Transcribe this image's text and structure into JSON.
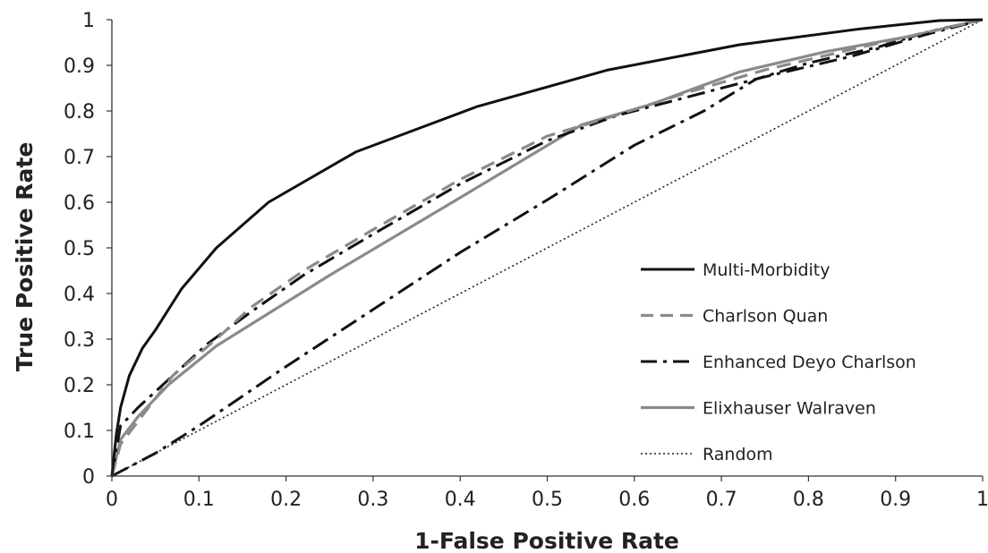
{
  "chart_data": {
    "type": "line",
    "title": "",
    "xlabel": "1-False Positive Rate",
    "ylabel": "True Positive Rate",
    "xlim": [
      0,
      1
    ],
    "ylim": [
      0,
      1
    ],
    "x_ticks": [
      "0",
      "0.1",
      "0.2",
      "0.3",
      "0.4",
      "0.5",
      "0.6",
      "0.7",
      "0.8",
      "0.9",
      "1"
    ],
    "y_ticks": [
      "0",
      "0.1",
      "0.2",
      "0.3",
      "0.4",
      "0.5",
      "0.6",
      "0.7",
      "0.8",
      "0.9",
      "1"
    ],
    "grid": false,
    "legend_position": "bottom-right",
    "series": [
      {
        "name": "Multi-Morbidity",
        "color": "#111111",
        "style": "solid",
        "points": [
          [
            0,
            0
          ],
          [
            0.005,
            0.09
          ],
          [
            0.01,
            0.15
          ],
          [
            0.02,
            0.22
          ],
          [
            0.035,
            0.28
          ],
          [
            0.05,
            0.32
          ],
          [
            0.08,
            0.41
          ],
          [
            0.12,
            0.5
          ],
          [
            0.18,
            0.6
          ],
          [
            0.28,
            0.71
          ],
          [
            0.42,
            0.81
          ],
          [
            0.57,
            0.89
          ],
          [
            0.72,
            0.945
          ],
          [
            0.86,
            0.98
          ],
          [
            0.95,
            0.998
          ],
          [
            1,
            1
          ]
        ]
      },
      {
        "name": "Charlson Quan",
        "color": "#8a8a8a",
        "style": "dashed",
        "points": [
          [
            0,
            0
          ],
          [
            0.01,
            0.07
          ],
          [
            0.03,
            0.12
          ],
          [
            0.07,
            0.22
          ],
          [
            0.12,
            0.3
          ],
          [
            0.16,
            0.37
          ],
          [
            0.22,
            0.45
          ],
          [
            0.3,
            0.54
          ],
          [
            0.4,
            0.65
          ],
          [
            0.5,
            0.745
          ],
          [
            0.57,
            0.785
          ],
          [
            0.66,
            0.84
          ],
          [
            0.75,
            0.89
          ],
          [
            0.85,
            0.935
          ],
          [
            0.93,
            0.97
          ],
          [
            1,
            1
          ]
        ]
      },
      {
        "name": "Enhanced Deyo Charlson",
        "color": "#111111",
        "style": "dashdot",
        "points": [
          [
            0,
            0
          ],
          [
            0.01,
            0.11
          ],
          [
            0.03,
            0.15
          ],
          [
            0.07,
            0.22
          ],
          [
            0.11,
            0.29
          ],
          [
            0.16,
            0.36
          ],
          [
            0.22,
            0.44
          ],
          [
            0.3,
            0.53
          ],
          [
            0.4,
            0.64
          ],
          [
            0.5,
            0.735
          ],
          [
            0.58,
            0.79
          ],
          [
            0.66,
            0.83
          ],
          [
            0.75,
            0.875
          ],
          [
            0.85,
            0.92
          ],
          [
            0.93,
            0.965
          ],
          [
            1,
            1
          ]
        ]
      },
      {
        "name": "Elixhauser Walraven",
        "color": "#8a8a8a",
        "style": "solid",
        "points": [
          [
            0,
            0
          ],
          [
            0.01,
            0.08
          ],
          [
            0.03,
            0.13
          ],
          [
            0.065,
            0.2
          ],
          [
            0.12,
            0.285
          ],
          [
            0.25,
            0.44
          ],
          [
            0.4,
            0.61
          ],
          [
            0.54,
            0.77
          ],
          [
            0.62,
            0.815
          ],
          [
            0.72,
            0.885
          ],
          [
            0.82,
            0.93
          ],
          [
            0.92,
            0.965
          ],
          [
            1,
            1
          ]
        ]
      },
      {
        "name": "Random",
        "color": "#222222",
        "style": "dotted",
        "points": [
          [
            0,
            0
          ],
          [
            1,
            1
          ]
        ]
      },
      {
        "name": "",
        "color": "#111111",
        "style": "dashdot",
        "legend": false,
        "points": [
          [
            0,
            0
          ],
          [
            0.05,
            0.05
          ],
          [
            0.1,
            0.11
          ],
          [
            0.2,
            0.24
          ],
          [
            0.3,
            0.365
          ],
          [
            0.4,
            0.49
          ],
          [
            0.5,
            0.605
          ],
          [
            0.6,
            0.725
          ],
          [
            0.68,
            0.8
          ],
          [
            0.74,
            0.87
          ],
          [
            0.8,
            0.905
          ],
          [
            0.88,
            0.94
          ],
          [
            0.94,
            0.975
          ],
          [
            1,
            1
          ]
        ]
      }
    ]
  }
}
